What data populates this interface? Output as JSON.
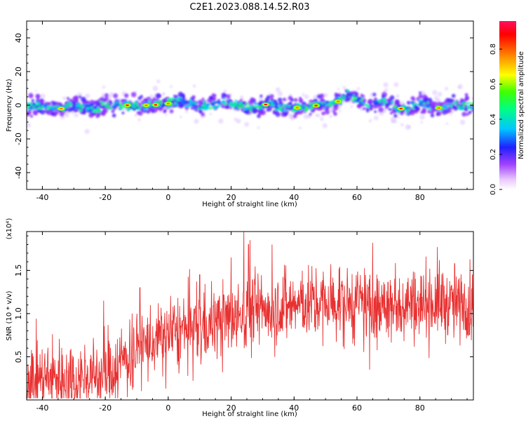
{
  "figure_title": "C2E1.2023.088.14.52.R03",
  "chart_data": [
    {
      "type": "heatmap",
      "title": "C2E1.2023.088.14.52.R03",
      "xlabel": "Height of straight line (km)",
      "ylabel": "Frequency (Hz)",
      "xlim": [
        -45,
        97
      ],
      "ylim": [
        -50,
        50
      ],
      "xticks": [
        -40,
        -20,
        0,
        20,
        40,
        60,
        80
      ],
      "yticks": [
        -40,
        -20,
        0,
        20,
        40
      ],
      "colorbar": {
        "label": "Normalized spectral amplitude",
        "range": [
          0.0,
          0.96
        ],
        "ticks": [
          0.0,
          0.2,
          0.4,
          0.6,
          0.8
        ]
      },
      "ridge_center_hz": [
        [
          -45,
          0
        ],
        [
          -40,
          -1
        ],
        [
          -34,
          -2
        ],
        [
          -30,
          0
        ],
        [
          -25,
          -2
        ],
        [
          -20,
          0
        ],
        [
          -12,
          0
        ],
        [
          -5,
          0
        ],
        [
          0,
          1
        ],
        [
          3,
          2
        ],
        [
          8,
          0
        ],
        [
          12,
          -1
        ],
        [
          18,
          3
        ],
        [
          22,
          0
        ],
        [
          27,
          -2
        ],
        [
          32,
          1
        ],
        [
          38,
          -2
        ],
        [
          43,
          -1
        ],
        [
          48,
          0
        ],
        [
          53,
          1
        ],
        [
          57,
          6
        ],
        [
          60,
          4
        ],
        [
          64,
          -1
        ],
        [
          68,
          3
        ],
        [
          72,
          -1
        ],
        [
          76,
          -3
        ],
        [
          80,
          2
        ],
        [
          85,
          -2
        ],
        [
          90,
          0
        ],
        [
          97,
          -1
        ]
      ],
      "peak_heights_km": [
        -34,
        -13,
        -7,
        -4,
        0,
        31,
        41,
        47,
        54,
        74,
        86
      ]
    },
    {
      "type": "line",
      "xlabel": "Height of straight line (km)",
      "ylabel": "SNR (10 * v/v)",
      "y_multiplier": "(x10⁴)",
      "xlim": [
        -45,
        97
      ],
      "ylim": [
        0,
        1.95
      ],
      "xticks": [
        -40,
        -20,
        0,
        20,
        40,
        60,
        80
      ],
      "yticks": [
        0.5,
        1.0,
        1.5
      ],
      "series": [
        {
          "name": "SNR",
          "color": "#e83030",
          "x": [
            -45,
            -40,
            -30,
            -20,
            -15,
            -10,
            -5,
            0,
            5,
            10,
            15,
            20,
            25,
            30,
            40,
            50,
            60,
            65,
            70,
            80,
            90,
            97
          ],
          "y": [
            0.25,
            0.25,
            0.25,
            0.3,
            0.45,
            0.6,
            0.65,
            0.75,
            0.8,
            0.85,
            0.9,
            0.95,
            1.0,
            1.05,
            1.1,
            1.12,
            1.1,
            1.05,
            1.1,
            1.15,
            1.12,
            1.1
          ]
        }
      ],
      "noise_amplitude": 0.28,
      "spikes": [
        {
          "x": -20.5,
          "y": 1.15
        },
        {
          "x": -9,
          "y": 1.3
        },
        {
          "x": 10,
          "y": 1.45
        },
        {
          "x": 20,
          "y": 1.65
        },
        {
          "x": 24,
          "y": 1.95
        },
        {
          "x": 25.5,
          "y": 1.8
        },
        {
          "x": 26,
          "y": 1.85
        },
        {
          "x": 33,
          "y": 1.8
        },
        {
          "x": 65,
          "y": 1.82
        },
        {
          "x": 64,
          "y": 0.35
        }
      ]
    }
  ]
}
